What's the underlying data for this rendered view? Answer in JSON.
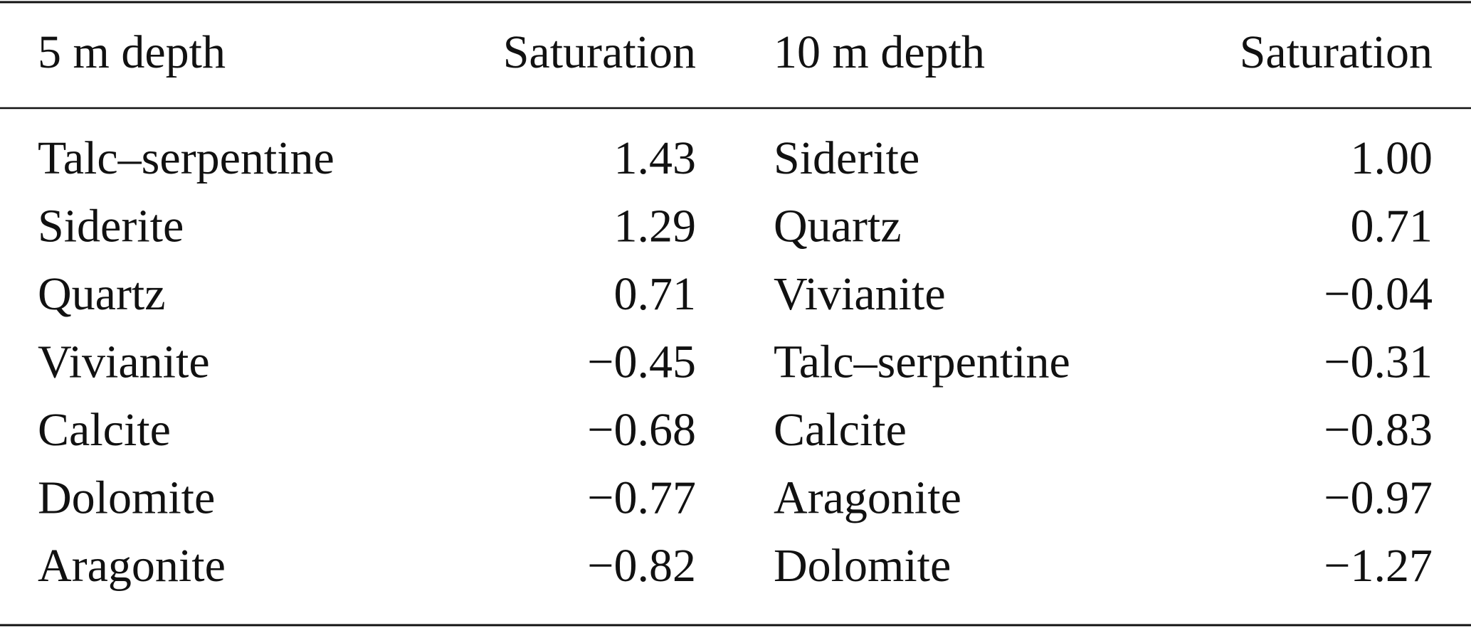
{
  "table": {
    "header": [
      "5 m depth",
      "Saturation",
      "10 m depth",
      "Saturation"
    ],
    "rows": [
      [
        "Talc–serpentine",
        "1.43",
        "Siderite",
        "1.00"
      ],
      [
        "Siderite",
        "1.29",
        "Quartz",
        "0.71"
      ],
      [
        "Quartz",
        "0.71",
        "Vivianite",
        "−0.04"
      ],
      [
        "Vivianite",
        "−0.45",
        "Talc–serpentine",
        "−0.31"
      ],
      [
        "Calcite",
        "−0.68",
        "Calcite",
        "−0.83"
      ],
      [
        "Dolomite",
        "−0.77",
        "Aragonite",
        "−0.97"
      ],
      [
        "Aragonite",
        "−0.82",
        "Dolomite",
        "−1.27"
      ]
    ]
  }
}
